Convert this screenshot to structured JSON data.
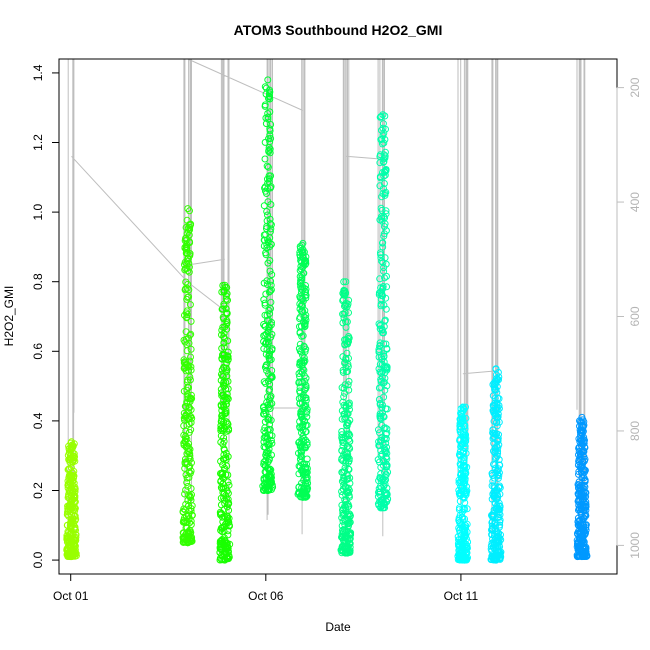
{
  "chart_data": {
    "type": "scatter",
    "title": "ATOM3 Southbound H2O2_GMI",
    "xlabel": "Date",
    "ylabel": "H2O2_GMI",
    "x_tick_labels": [
      {
        "label": "Oct 01",
        "day": 1
      },
      {
        "label": "Oct 06",
        "day": 6
      },
      {
        "label": "Oct 11",
        "day": 11
      }
    ],
    "xlim_days": [
      0.7,
      15.0
    ],
    "ylim": [
      -0.04,
      1.44
    ],
    "y_ticks": [
      0.0,
      0.2,
      0.4,
      0.6,
      0.8,
      1.0,
      1.2,
      1.4
    ],
    "y_tick_labels": [
      "0.0",
      "0.2",
      "0.4",
      "0.6",
      "0.8",
      "1.0",
      "1.2",
      "1.4"
    ],
    "secondary_axis": {
      "description": "pressure (gray trace)",
      "ylim": [
        1050,
        150
      ],
      "ticks": [
        200,
        400,
        600,
        800,
        1000
      ],
      "tick_labels": [
        "200",
        "400",
        "600",
        "800",
        "1000"
      ],
      "color": "#bebebe"
    },
    "grid": false,
    "legend": "none",
    "series": [
      {
        "day": 1.02,
        "ymin": 0.01,
        "ymax": 0.34,
        "color": "#99ff00"
      },
      {
        "day": 4.0,
        "ymin": 0.05,
        "ymax": 1.01,
        "color": "#33ff00"
      },
      {
        "day": 4.95,
        "ymin": 0.0,
        "ymax": 0.79,
        "color": "#19ff00"
      },
      {
        "day": 6.05,
        "ymin": 0.2,
        "ymax": 1.38,
        "color": "#00ff33"
      },
      {
        "day": 6.95,
        "ymin": 0.18,
        "ymax": 0.91,
        "color": "#00ff55"
      },
      {
        "day": 8.05,
        "ymin": 0.02,
        "ymax": 0.8,
        "color": "#00ff88"
      },
      {
        "day": 9.0,
        "ymin": 0.15,
        "ymax": 1.28,
        "color": "#00ffaa"
      },
      {
        "day": 11.05,
        "ymin": 0.0,
        "ymax": 0.44,
        "color": "#00ffff"
      },
      {
        "day": 11.9,
        "ymin": 0.0,
        "ymax": 0.55,
        "color": "#00eeff"
      },
      {
        "day": 14.1,
        "ymin": 0.01,
        "ymax": 0.41,
        "color": "#0099ff"
      }
    ]
  }
}
